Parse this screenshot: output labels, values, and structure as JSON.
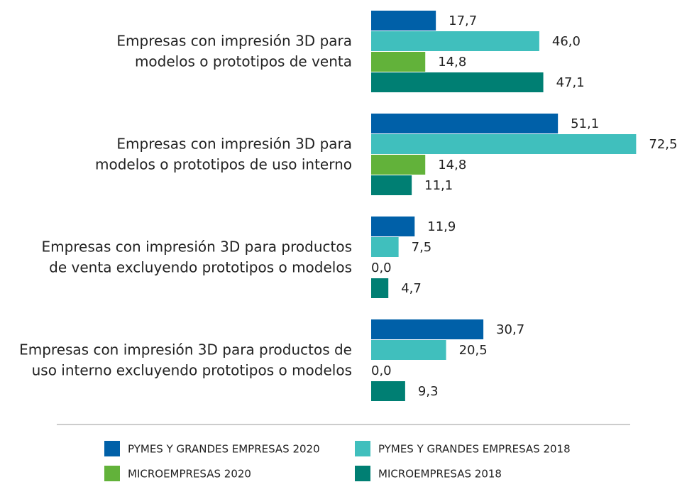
{
  "chart_data": {
    "type": "hbar",
    "categories": [
      "Empresas con impresión 3D para\nmodelos o prototipos de venta",
      "Empresas con impresión 3D para\nmodelos o prototipos de uso interno",
      "Empresas con impresión 3D para productos\nde venta excluyendo prototipos o modelos",
      "Empresas con impresión 3D para productos de\nuso interno excluyendo prototipos o modelos"
    ],
    "series": [
      {
        "name": "PYMES Y GRANDES EMPRESAS 2020",
        "color": "#0060a8",
        "values": [
          17.7,
          51.1,
          11.9,
          30.7
        ],
        "value_labels": [
          "17,7",
          "51,1",
          "11,9",
          "30,7"
        ]
      },
      {
        "name": "PYMES Y GRANDES EMPRESAS 2018",
        "color": "#40bfbd",
        "values": [
          46.0,
          72.5,
          7.5,
          20.5
        ],
        "value_labels": [
          "46,0",
          "72,5",
          "7,5",
          "20,5"
        ]
      },
      {
        "name": "MICROEMPRESAS 2020",
        "color": "#62b23a",
        "values": [
          14.8,
          14.8,
          0.0,
          0.0
        ],
        "value_labels": [
          "14,8",
          "14,8",
          "0,0",
          "0,0"
        ]
      },
      {
        "name": "MICROEMPRESAS 2018",
        "color": "#007f73",
        "values": [
          47.1,
          11.1,
          4.7,
          9.3
        ],
        "value_labels": [
          "47,1",
          "11,1",
          "4,7",
          "9,3"
        ]
      }
    ]
  }
}
